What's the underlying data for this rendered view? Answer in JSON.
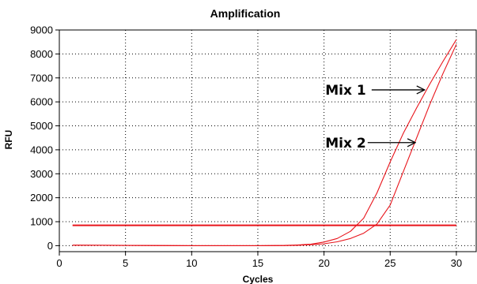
{
  "chart_data": {
    "type": "line",
    "title": "Amplification",
    "xlabel": "Cycles",
    "ylabel": "RFU",
    "xlim": [
      0,
      31.5
    ],
    "ylim": [
      -250,
      9000
    ],
    "xticks": [
      0,
      5,
      10,
      15,
      20,
      25,
      30
    ],
    "yticks": [
      0,
      1000,
      2000,
      3000,
      4000,
      5000,
      6000,
      7000,
      8000,
      9000
    ],
    "grid": true,
    "series": [
      {
        "name": "Mix 1",
        "color": "#e8141b",
        "x": [
          1,
          5,
          10,
          15,
          17,
          18,
          19,
          20,
          21,
          22,
          23,
          24,
          25,
          26,
          27,
          28,
          29,
          30
        ],
        "y": [
          20,
          10,
          0,
          0,
          10,
          30,
          60,
          150,
          300,
          600,
          1150,
          2200,
          3500,
          4700,
          5750,
          6750,
          7700,
          8600
        ]
      },
      {
        "name": "Mix 2",
        "color": "#e8141b",
        "x": [
          1,
          5,
          10,
          15,
          17,
          18,
          19,
          20,
          21,
          22,
          23,
          24,
          25,
          26,
          27,
          28,
          29,
          30
        ],
        "y": [
          20,
          10,
          0,
          0,
          5,
          15,
          40,
          80,
          160,
          300,
          520,
          900,
          1700,
          3100,
          4500,
          5900,
          7200,
          8400
        ]
      }
    ],
    "threshold": {
      "y": 850,
      "x": [
        1,
        30
      ],
      "color": "#e8141b"
    },
    "annotations": [
      {
        "label": "Mix 1",
        "text_at": [
          20.1,
          6500
        ],
        "arrow_from": [
          23.6,
          6500
        ],
        "arrow_to": [
          27.6,
          6500
        ]
      },
      {
        "label": "Mix 2",
        "text_at": [
          20.1,
          4300
        ],
        "arrow_from": [
          23.3,
          4300
        ],
        "arrow_to": [
          26.9,
          4300
        ]
      }
    ]
  }
}
